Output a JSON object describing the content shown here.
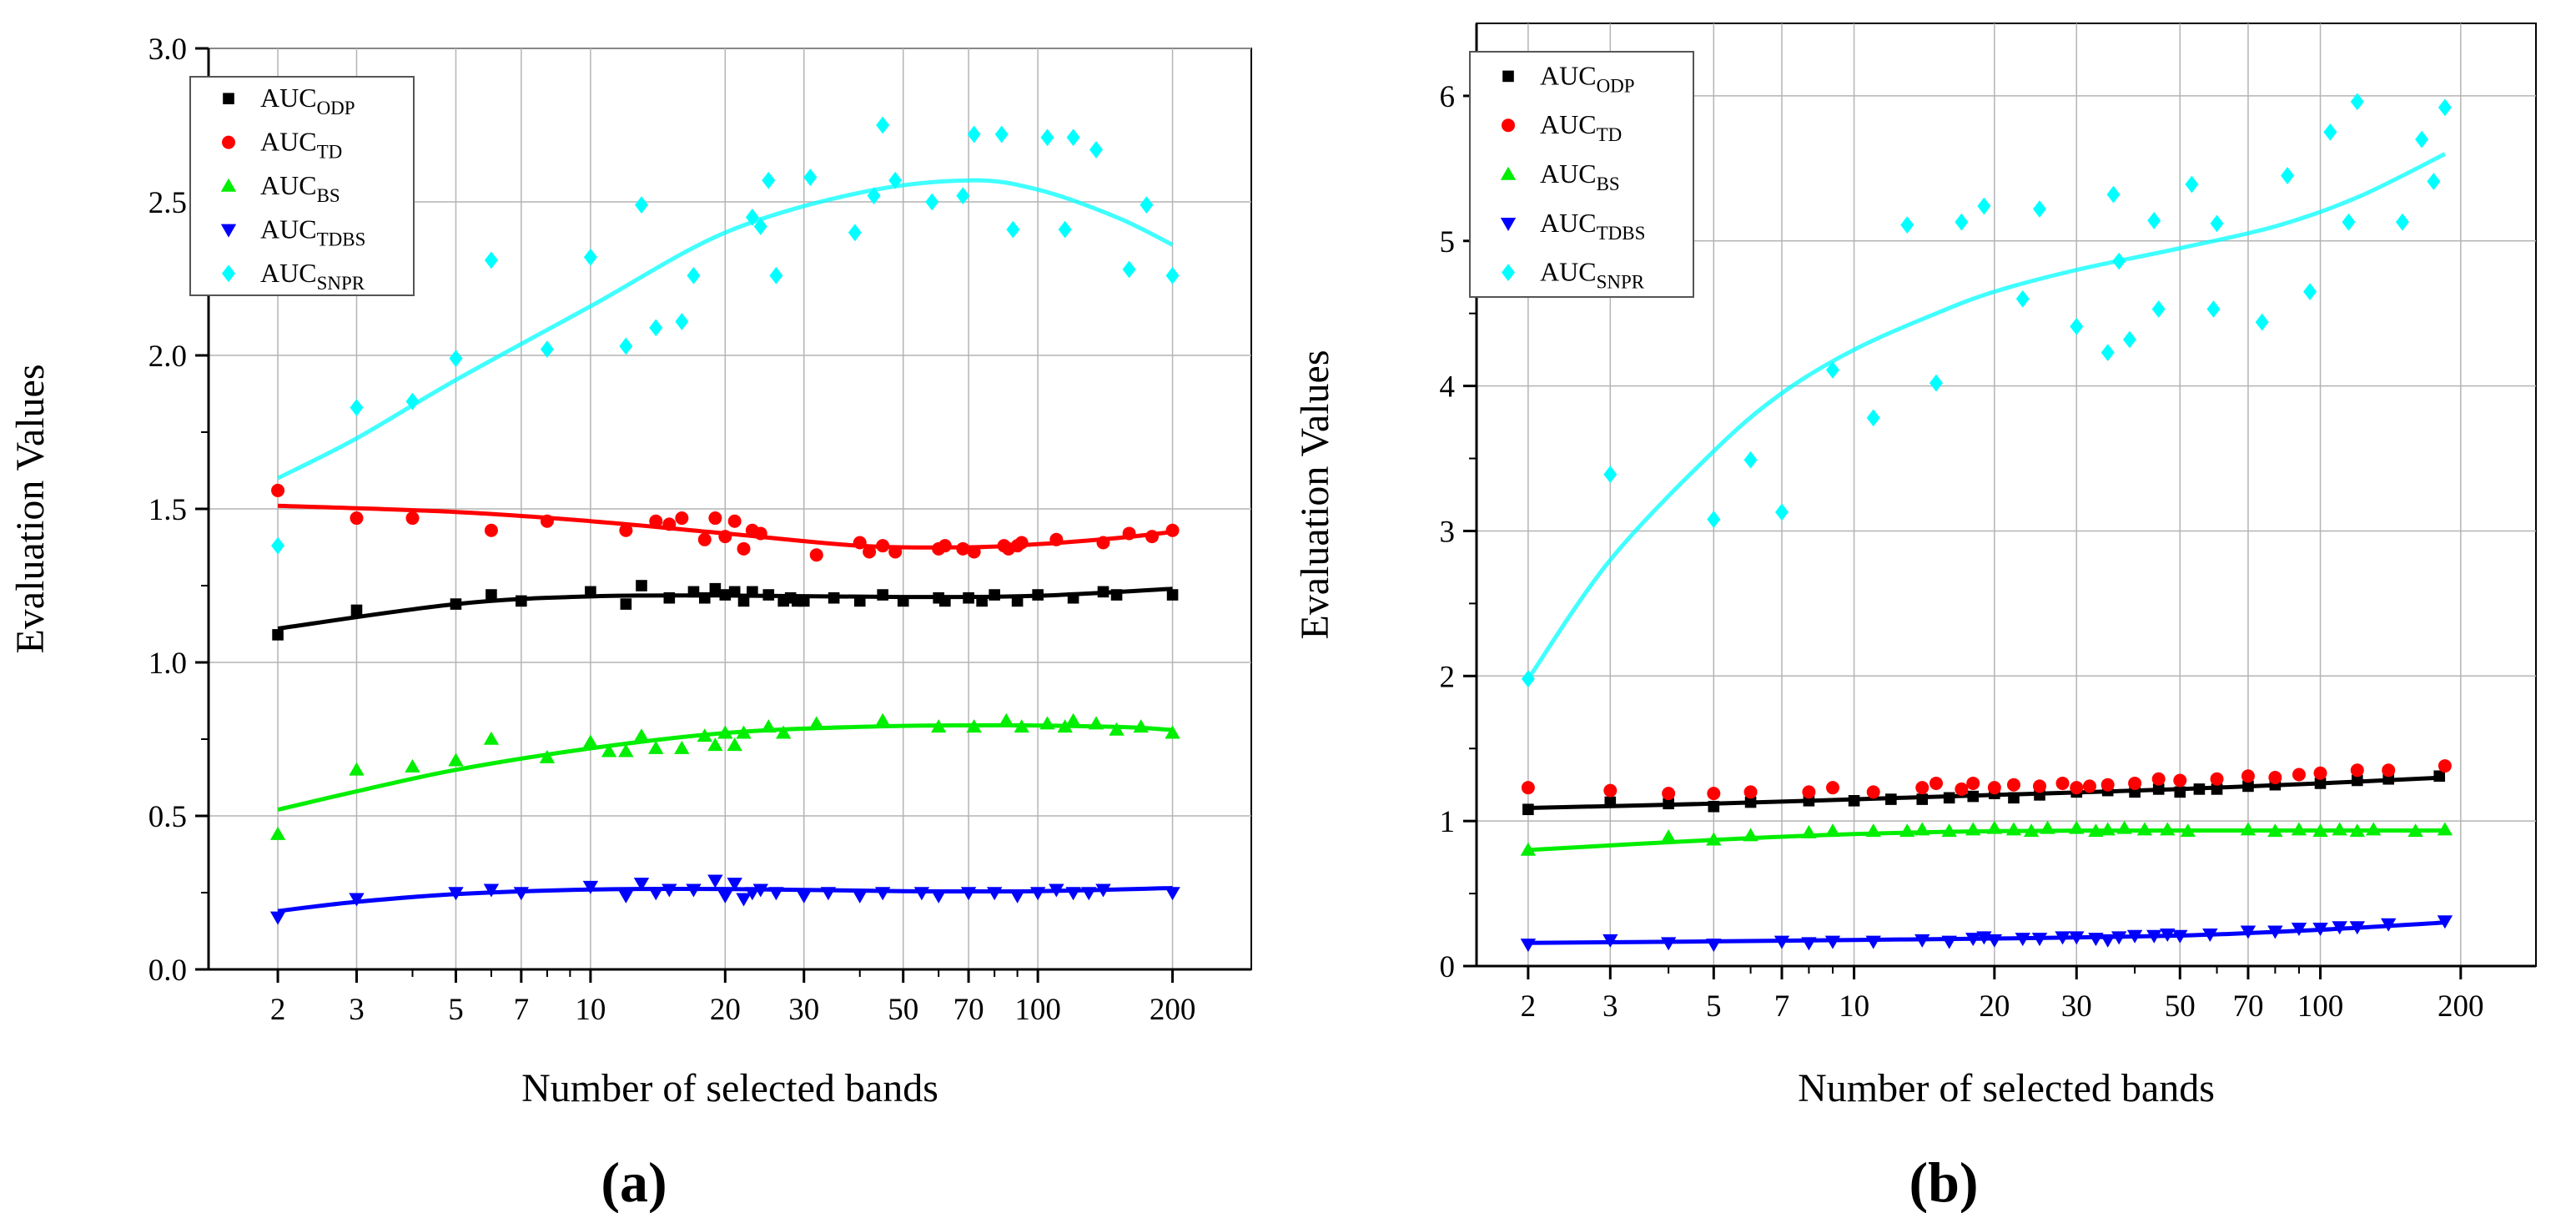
{
  "chart_data": [
    {
      "type": "scatter",
      "panel_label": "(a)",
      "xlabel": "Number of selected bands",
      "ylabel": "Evaluation Values",
      "xscale": "log",
      "xlim": [
        1.4,
        300
      ],
      "ylim": [
        0,
        3.0
      ],
      "xticks": [
        2,
        3,
        5,
        7,
        10,
        20,
        30,
        50,
        70,
        100,
        200
      ],
      "xtick_labels": [
        "2",
        "3",
        "5",
        "7",
        "10",
        "20",
        "30",
        "50",
        "70",
        "100",
        "200"
      ],
      "yticks": [
        0,
        0.5,
        1.0,
        1.5,
        2.0,
        2.5,
        3.0
      ],
      "ytick_labels": [
        "0.0",
        "0.5",
        "1.0",
        "1.5",
        "2.0",
        "2.5",
        "3.0"
      ],
      "grid": "major",
      "legend_position": "top-left",
      "series": [
        {
          "name": "AUC",
          "sub": "ODP",
          "marker": "square",
          "color": "#000000",
          "x": [
            2,
            3,
            5,
            6,
            7,
            10,
            12,
            13,
            15,
            17,
            18,
            19,
            20,
            21,
            22,
            23,
            25,
            27,
            28,
            29,
            30,
            35,
            40,
            45,
            50,
            60,
            62,
            70,
            75,
            80,
            90,
            100,
            120,
            140,
            150,
            200
          ],
          "y": [
            1.09,
            1.17,
            1.19,
            1.22,
            1.2,
            1.23,
            1.19,
            1.25,
            1.21,
            1.23,
            1.21,
            1.24,
            1.22,
            1.23,
            1.2,
            1.23,
            1.22,
            1.2,
            1.21,
            1.2,
            1.2,
            1.21,
            1.2,
            1.22,
            1.2,
            1.21,
            1.2,
            1.21,
            1.2,
            1.22,
            1.2,
            1.22,
            1.21,
            1.23,
            1.22,
            1.22
          ],
          "fit_x": [
            2,
            5,
            10,
            20,
            50,
            100,
            200
          ],
          "fit_y": [
            1.11,
            1.19,
            1.215,
            1.218,
            1.213,
            1.217,
            1.24
          ]
        },
        {
          "name": "AUC",
          "sub": "TD",
          "marker": "circle",
          "color": "#ff0000",
          "x": [
            2,
            3,
            4,
            6,
            8,
            12,
            14,
            15,
            16,
            18,
            19,
            20,
            21,
            22,
            23,
            24,
            32,
            40,
            42,
            45,
            48,
            60,
            62,
            68,
            72,
            84,
            86,
            90,
            92,
            110,
            140,
            160,
            180,
            200
          ],
          "y": [
            1.56,
            1.47,
            1.47,
            1.43,
            1.46,
            1.43,
            1.46,
            1.45,
            1.47,
            1.4,
            1.47,
            1.41,
            1.46,
            1.37,
            1.43,
            1.42,
            1.35,
            1.39,
            1.36,
            1.38,
            1.36,
            1.37,
            1.38,
            1.37,
            1.36,
            1.38,
            1.37,
            1.38,
            1.39,
            1.4,
            1.39,
            1.42,
            1.41,
            1.43
          ],
          "fit_x": [
            2,
            5,
            10,
            20,
            40,
            70,
            100,
            150,
            200
          ],
          "fit_y": [
            1.51,
            1.49,
            1.46,
            1.42,
            1.38,
            1.375,
            1.385,
            1.405,
            1.425
          ]
        },
        {
          "name": "AUC",
          "sub": "BS",
          "marker": "triangle-up",
          "color": "#00ee00",
          "x": [
            2,
            3,
            4,
            5,
            6,
            8,
            10,
            11,
            12,
            13,
            14,
            16,
            18,
            19,
            20,
            21,
            22,
            25,
            27,
            32,
            45,
            60,
            72,
            85,
            92,
            105,
            115,
            120,
            135,
            150,
            170,
            200
          ],
          "y": [
            0.44,
            0.65,
            0.66,
            0.68,
            0.75,
            0.69,
            0.74,
            0.71,
            0.71,
            0.76,
            0.72,
            0.72,
            0.76,
            0.73,
            0.77,
            0.73,
            0.77,
            0.79,
            0.77,
            0.8,
            0.81,
            0.79,
            0.79,
            0.81,
            0.79,
            0.8,
            0.79,
            0.81,
            0.8,
            0.78,
            0.79,
            0.77
          ],
          "fit_x": [
            2,
            3,
            5,
            10,
            20,
            40,
            80,
            150,
            200
          ],
          "fit_y": [
            0.52,
            0.58,
            0.65,
            0.72,
            0.77,
            0.79,
            0.795,
            0.79,
            0.78
          ]
        },
        {
          "name": "AUC",
          "sub": "TDBS",
          "marker": "triangle-down",
          "color": "#0000ff",
          "x": [
            2,
            3,
            5,
            6,
            7,
            10,
            12,
            13,
            14,
            15,
            17,
            19,
            20,
            21,
            22,
            23,
            24,
            26,
            30,
            34,
            40,
            45,
            55,
            60,
            70,
            80,
            90,
            100,
            110,
            120,
            130,
            140,
            200
          ],
          "y": [
            0.17,
            0.23,
            0.25,
            0.26,
            0.25,
            0.27,
            0.24,
            0.28,
            0.25,
            0.26,
            0.26,
            0.29,
            0.24,
            0.28,
            0.23,
            0.25,
            0.26,
            0.25,
            0.24,
            0.25,
            0.24,
            0.25,
            0.25,
            0.24,
            0.25,
            0.25,
            0.24,
            0.25,
            0.26,
            0.25,
            0.25,
            0.26,
            0.25
          ],
          "fit_x": [
            2,
            3,
            5,
            10,
            20,
            50,
            100,
            200
          ],
          "fit_y": [
            0.19,
            0.22,
            0.245,
            0.26,
            0.262,
            0.255,
            0.255,
            0.265
          ]
        },
        {
          "name": "AUC",
          "sub": "SNPR",
          "marker": "diamond",
          "color": "#00ffff",
          "x": [
            2,
            3,
            4,
            5,
            6,
            8,
            10,
            12,
            13,
            14,
            16,
            17,
            23,
            24,
            25,
            26,
            31,
            39,
            43,
            45,
            48,
            58,
            68,
            72,
            83,
            88,
            105,
            115,
            120,
            135,
            160,
            175,
            200
          ],
          "y": [
            1.38,
            1.83,
            1.85,
            1.99,
            2.31,
            2.02,
            2.32,
            2.03,
            2.49,
            2.09,
            2.11,
            2.26,
            2.45,
            2.42,
            2.57,
            2.26,
            2.58,
            2.4,
            2.52,
            2.75,
            2.57,
            2.5,
            2.52,
            2.72,
            2.72,
            2.41,
            2.71,
            2.41,
            2.71,
            2.67,
            2.28,
            2.49,
            2.26
          ],
          "fit_x": [
            2,
            3,
            5,
            10,
            20,
            40,
            70,
            100,
            150,
            200
          ],
          "fit_y": [
            1.6,
            1.73,
            1.92,
            2.16,
            2.4,
            2.53,
            2.57,
            2.54,
            2.45,
            2.36
          ]
        }
      ]
    },
    {
      "type": "scatter",
      "panel_label": "(b)",
      "xlabel": "Number of selected bands",
      "ylabel": "Evaluation Values",
      "xscale": "log",
      "xlim": [
        1.55,
        290
      ],
      "ylim": [
        0,
        6.5
      ],
      "xticks": [
        2,
        3,
        5,
        7,
        10,
        20,
        30,
        50,
        70,
        100,
        200
      ],
      "xtick_labels": [
        "2",
        "3",
        "5",
        "7",
        "10",
        "20",
        "30",
        "50",
        "70",
        "100",
        "200"
      ],
      "yticks": [
        0,
        1,
        2,
        3,
        4,
        5,
        6
      ],
      "ytick_labels": [
        "0",
        "1",
        "2",
        "3",
        "4",
        "5",
        "6"
      ],
      "grid": "major",
      "legend_position": "top-left",
      "series": [
        {
          "name": "AUC",
          "sub": "ODP",
          "marker": "square",
          "color": "#000000",
          "x": [
            2,
            3,
            4,
            5,
            6,
            8,
            10,
            12,
            14,
            16,
            18,
            20,
            22,
            25,
            30,
            35,
            40,
            45,
            50,
            55,
            60,
            70,
            80,
            100,
            120,
            140,
            180
          ],
          "y": [
            1.08,
            1.13,
            1.12,
            1.1,
            1.13,
            1.14,
            1.14,
            1.15,
            1.15,
            1.16,
            1.17,
            1.19,
            1.16,
            1.18,
            1.2,
            1.21,
            1.2,
            1.22,
            1.2,
            1.22,
            1.22,
            1.24,
            1.25,
            1.26,
            1.28,
            1.29,
            1.31
          ],
          "fit_x": [
            2,
            5,
            10,
            20,
            50,
            100,
            185
          ],
          "fit_y": [
            1.09,
            1.12,
            1.15,
            1.18,
            1.22,
            1.26,
            1.3
          ]
        },
        {
          "name": "AUC",
          "sub": "TD",
          "marker": "circle",
          "color": "#ff0000",
          "x": [
            2,
            3,
            4,
            5,
            6,
            8,
            9,
            11,
            14,
            15,
            17,
            18,
            20,
            22,
            25,
            28,
            30,
            32,
            35,
            40,
            45,
            50,
            60,
            70,
            80,
            90,
            100,
            120,
            140,
            185
          ],
          "y": [
            1.23,
            1.21,
            1.19,
            1.19,
            1.2,
            1.2,
            1.23,
            1.2,
            1.23,
            1.26,
            1.22,
            1.26,
            1.23,
            1.25,
            1.24,
            1.26,
            1.23,
            1.24,
            1.25,
            1.26,
            1.29,
            1.28,
            1.29,
            1.31,
            1.3,
            1.32,
            1.33,
            1.35,
            1.35,
            1.38
          ]
        },
        {
          "name": "AUC",
          "sub": "BS",
          "marker": "triangle-up",
          "color": "#00ee00",
          "x": [
            2,
            4,
            5,
            6,
            8,
            9,
            11,
            13,
            14,
            16,
            18,
            20,
            22,
            24,
            26,
            30,
            33,
            35,
            38,
            42,
            47,
            52,
            70,
            80,
            90,
            100,
            110,
            120,
            130,
            160,
            185
          ],
          "y": [
            0.8,
            0.89,
            0.87,
            0.9,
            0.92,
            0.93,
            0.93,
            0.93,
            0.94,
            0.93,
            0.94,
            0.95,
            0.94,
            0.93,
            0.95,
            0.95,
            0.93,
            0.94,
            0.95,
            0.94,
            0.94,
            0.93,
            0.94,
            0.93,
            0.94,
            0.93,
            0.94,
            0.93,
            0.94,
            0.93,
            0.94
          ],
          "fit_x": [
            2,
            5,
            10,
            20,
            50,
            100,
            185
          ],
          "fit_y": [
            0.8,
            0.87,
            0.91,
            0.93,
            0.935,
            0.935,
            0.935
          ]
        },
        {
          "name": "AUC",
          "sub": "TDBS",
          "marker": "triangle-down",
          "color": "#0000ff",
          "x": [
            2,
            3,
            4,
            5,
            7,
            8,
            9,
            11,
            14,
            16,
            18,
            19,
            20,
            23,
            25,
            28,
            30,
            33,
            35,
            37,
            40,
            44,
            47,
            50,
            58,
            70,
            80,
            90,
            100,
            110,
            120,
            140,
            185
          ],
          "y": [
            0.15,
            0.18,
            0.16,
            0.15,
            0.17,
            0.16,
            0.17,
            0.17,
            0.18,
            0.17,
            0.19,
            0.2,
            0.18,
            0.19,
            0.19,
            0.2,
            0.2,
            0.19,
            0.18,
            0.2,
            0.21,
            0.21,
            0.22,
            0.21,
            0.22,
            0.24,
            0.24,
            0.26,
            0.26,
            0.27,
            0.27,
            0.29,
            0.31
          ],
          "fit_x": [
            2,
            5,
            10,
            20,
            50,
            100,
            185
          ],
          "fit_y": [
            0.16,
            0.17,
            0.18,
            0.19,
            0.21,
            0.25,
            0.3
          ]
        },
        {
          "name": "AUC",
          "sub": "SNPR",
          "marker": "diamond",
          "color": "#00ffff",
          "x": [
            2,
            3,
            5,
            6,
            7,
            9,
            11,
            13,
            15,
            17,
            19,
            23,
            25,
            30,
            35,
            36,
            37,
            39,
            44,
            45,
            53,
            59,
            60,
            75,
            85,
            95,
            105,
            115,
            120,
            150,
            165,
            175,
            185
          ],
          "y": [
            1.98,
            3.39,
            3.08,
            3.49,
            3.13,
            4.11,
            3.78,
            5.11,
            4.02,
            5.13,
            5.24,
            4.6,
            5.22,
            4.41,
            4.23,
            5.32,
            4.86,
            4.32,
            5.14,
            4.53,
            5.39,
            4.53,
            5.12,
            4.44,
            5.45,
            4.65,
            5.75,
            5.13,
            5.96,
            5.13,
            5.7,
            5.41,
            5.92
          ],
          "fit_x": [
            2,
            3,
            5,
            7,
            10,
            15,
            20,
            30,
            50,
            80,
            120,
            185
          ],
          "fit_y": [
            1.98,
            2.8,
            3.55,
            3.95,
            4.25,
            4.5,
            4.65,
            4.8,
            4.95,
            5.1,
            5.3,
            5.6
          ]
        }
      ]
    }
  ]
}
